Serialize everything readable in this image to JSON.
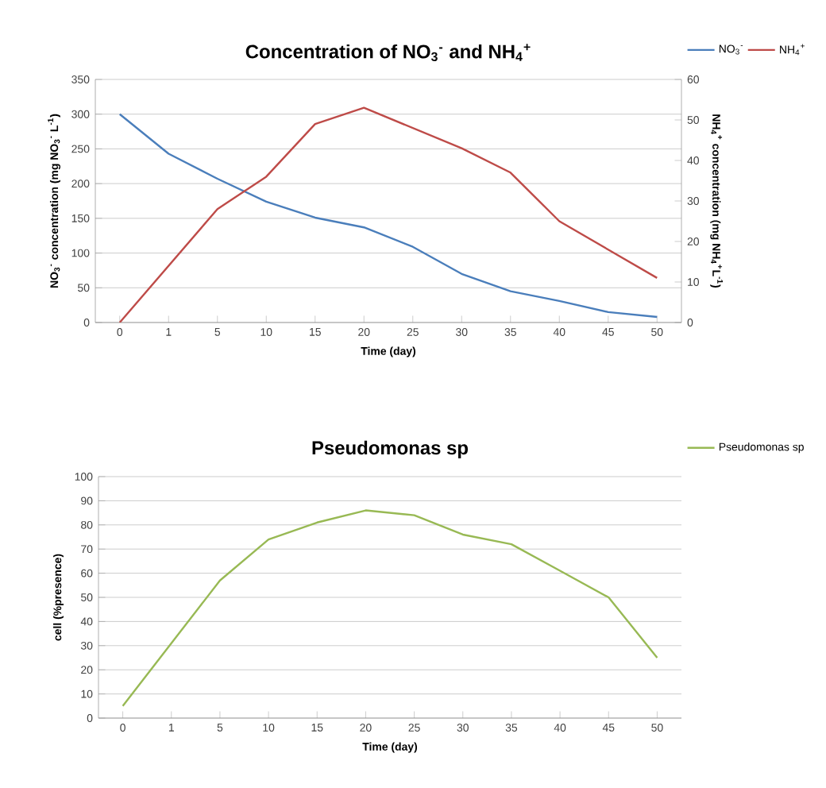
{
  "chart_data": [
    {
      "type": "line",
      "title": "Concentration of NO$_{3}$$^{-}$ and NH$_{4}$$^{+}$",
      "xlabel": "Time (day)",
      "ylabel": "NO$_{3}$$^{-}$ concentration (mg NO$_{3}$$^{-}$ L$^{-1}$)",
      "y2label": "NH$_{4}$$^{+}$ concentration (mg NH$_{4}$$^{+}$L$^{-1}$)",
      "categories": [
        "0",
        "1",
        "5",
        "10",
        "15",
        "20",
        "25",
        "30",
        "35",
        "40",
        "45",
        "50"
      ],
      "series": [
        {
          "name": "NO$_{3}$$^{-}$",
          "color": "#4a7ebb",
          "values": [
            300,
            243,
            207,
            174,
            151,
            137,
            109,
            70,
            45,
            31,
            15,
            8
          ]
        },
        {
          "name": "NH$_{4}$$^{+}$",
          "color": "#be4b48",
          "axis": "y2",
          "values": [
            0,
            14,
            28,
            36,
            49,
            53,
            48,
            43,
            37,
            25,
            18,
            11
          ]
        }
      ],
      "ylim": [
        0,
        350
      ],
      "yticks": [
        0,
        50,
        100,
        150,
        200,
        250,
        300,
        350
      ],
      "y2lim": [
        0,
        60
      ],
      "y2ticks": [
        0,
        10,
        20,
        30,
        40,
        50,
        60
      ],
      "grid": "y",
      "legend": "top right"
    },
    {
      "type": "line",
      "title": "Pseudomonas sp",
      "xlabel": "Time (day)",
      "ylabel": "cell (%presence)",
      "categories": [
        "0",
        "1",
        "5",
        "10",
        "15",
        "20",
        "25",
        "30",
        "35",
        "40",
        "45",
        "50"
      ],
      "series": [
        {
          "name": "Pseudomonas sp",
          "color": "#98b954",
          "values": [
            5,
            31,
            57,
            74,
            81,
            86,
            84,
            76,
            72,
            61,
            50,
            25
          ]
        }
      ],
      "ylim": [
        0,
        100
      ],
      "yticks": [
        0,
        10,
        20,
        30,
        40,
        50,
        60,
        70,
        80,
        90,
        100
      ],
      "grid": "y",
      "legend": "top right"
    }
  ]
}
